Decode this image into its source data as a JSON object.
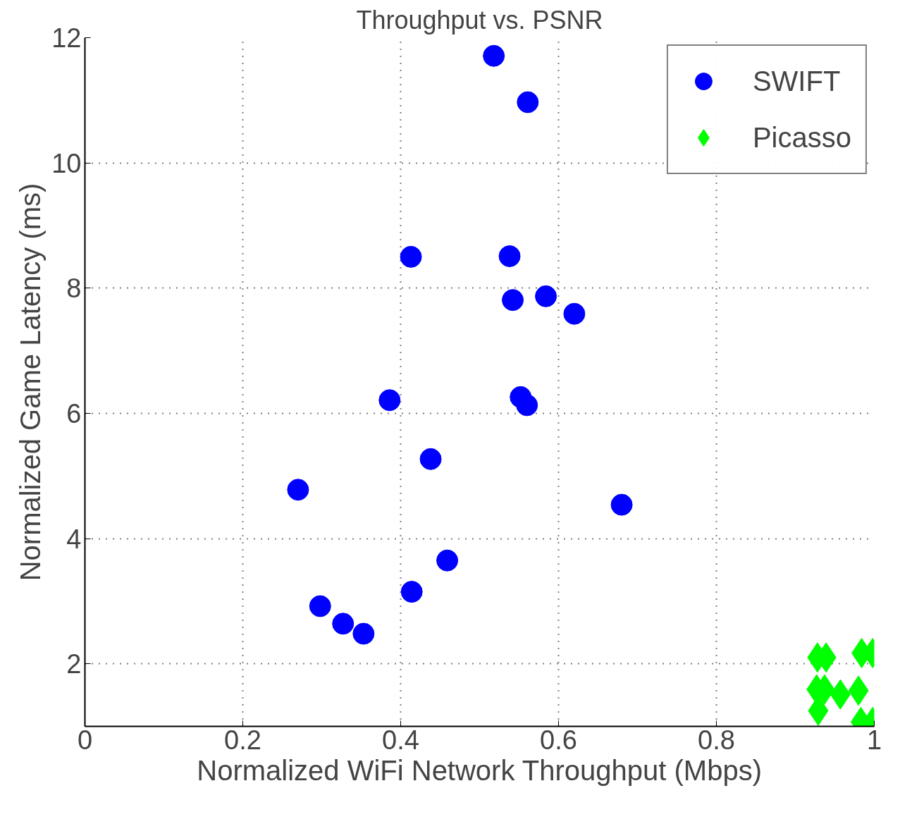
{
  "chart_data": {
    "type": "scatter",
    "title": "Throughput vs. PSNR",
    "xlabel": "Normalized WiFi Network Throughput (Mbps)",
    "ylabel": "Normalized Game Latency (ms)",
    "xlim": [
      0,
      1
    ],
    "ylim": [
      1,
      12
    ],
    "xticks": [
      0,
      0.2,
      0.4,
      0.6,
      0.8,
      1
    ],
    "yticks": [
      2,
      4,
      6,
      8,
      10,
      12
    ],
    "grid": true,
    "legend": "top right",
    "series": [
      {
        "name": "SWIFT",
        "color": "#0000ff",
        "marker": "circle",
        "x": [
          0.518,
          0.561,
          0.413,
          0.538,
          0.542,
          0.584,
          0.62,
          0.386,
          0.552,
          0.56,
          0.438,
          0.27,
          0.68,
          0.459,
          0.414,
          0.298,
          0.327,
          0.353
        ],
        "values": [
          11.71,
          10.97,
          8.5,
          8.51,
          7.81,
          7.87,
          7.59,
          6.21,
          6.26,
          6.13,
          5.27,
          4.78,
          4.54,
          3.65,
          3.15,
          2.92,
          2.64,
          2.48
        ]
      },
      {
        "name": "Picasso",
        "color": "#00ff00",
        "marker": "diamond",
        "x": [
          0.928,
          0.939,
          0.984,
          0.998,
          0.927,
          0.937,
          0.957,
          0.98,
          0.929,
          0.983,
          0.998
        ],
        "values": [
          2.1,
          2.1,
          2.17,
          2.17,
          1.59,
          1.59,
          1.51,
          1.57,
          1.25,
          1.07,
          1.07
        ]
      }
    ]
  }
}
